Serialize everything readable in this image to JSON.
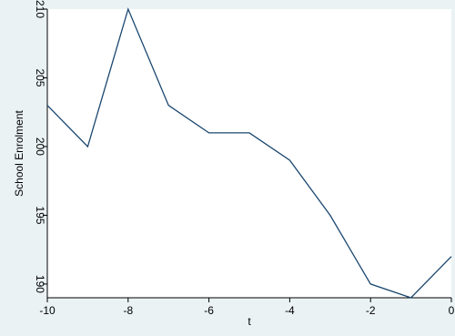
{
  "chart_data": {
    "type": "line",
    "title": "",
    "xlabel": "t",
    "ylabel": "School Enrolment",
    "xlim": [
      -10,
      0
    ],
    "ylim": [
      189,
      210
    ],
    "xticks": [
      -10,
      -8,
      -6,
      -4,
      -2,
      0
    ],
    "yticks": [
      190,
      195,
      200,
      205,
      210
    ],
    "grid": false,
    "legend": "none",
    "colors": {
      "background": "#eaf2f3",
      "plot_background": "#ffffff",
      "line": "#1a476f"
    },
    "series": [
      {
        "x": [
          -10,
          -9,
          -8,
          -7,
          -6,
          -5,
          -4,
          -3,
          -2,
          -1,
          0
        ],
        "y": [
          203,
          200,
          210,
          203,
          201,
          201,
          199,
          195,
          190,
          189,
          192
        ]
      }
    ]
  }
}
